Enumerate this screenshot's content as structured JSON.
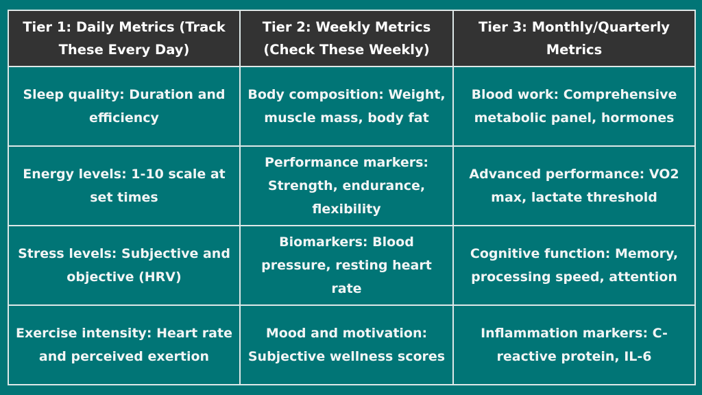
{
  "colors": {
    "background": "#017576",
    "header_bg": "#333333",
    "border": "#dfe9e9",
    "text": "#ffffff"
  },
  "table": {
    "headers": [
      "Tier 1: Daily Metrics (Track These Every Day)",
      "Tier 2: Weekly Metrics (Check These Weekly)",
      "Tier 3: Monthly/Quarterly Metrics"
    ],
    "rows": [
      [
        "Sleep quality: Duration and efficiency",
        "Body composition: Weight, muscle mass, body fat",
        "Blood work: Comprehensive metabolic panel, hormones"
      ],
      [
        "Energy levels: 1-10 scale at set times",
        "Performance markers: Strength, endurance, flexibility",
        "Advanced performance: VO2 max, lactate threshold"
      ],
      [
        "Stress levels: Subjective and objective (HRV)",
        "Biomarkers: Blood pressure, resting heart rate",
        "Cognitive function: Memory, processing speed, attention"
      ],
      [
        "Exercise intensity: Heart rate and perceived exertion",
        "Mood and motivation: Subjective wellness scores",
        "Inflammation markers: C-reactive protein, IL-6"
      ]
    ]
  }
}
